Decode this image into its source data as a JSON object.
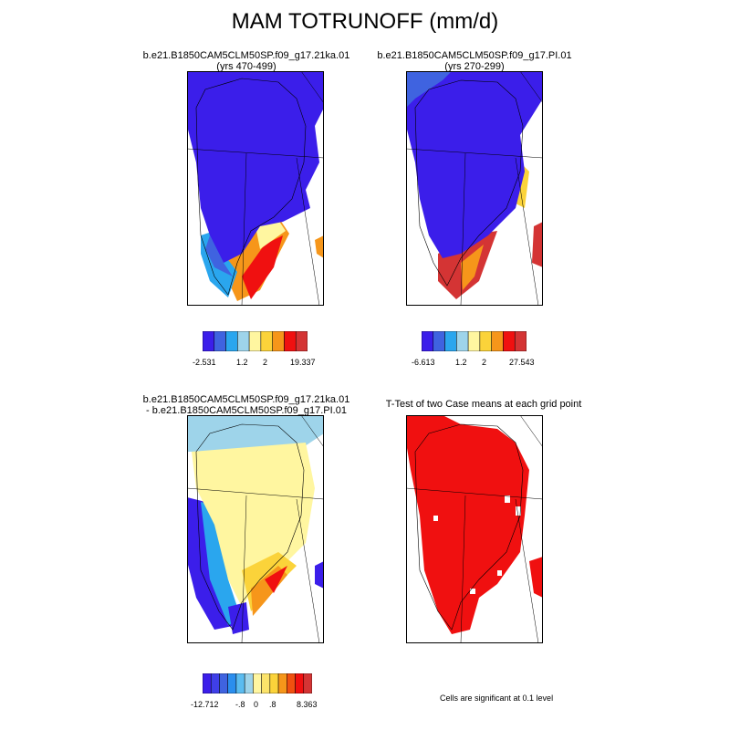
{
  "figure": {
    "title": "MAM TOTRUNOFF (mm/d)"
  },
  "panels": [
    {
      "id": "case1",
      "title_line1": "b.e21.B1850CAM5CLM50SP.f09_g17.21ka.01",
      "title_line2": "(yrs 470-499)",
      "colorbar": {
        "colors": [
          "#3b1eea",
          "#3f63e0",
          "#2aa6ee",
          "#9ed4ea",
          "#fff6a0",
          "#fbd33a",
          "#f6961a",
          "#f01010",
          "#d43434"
        ],
        "labels": [
          "-2.531",
          "1.2",
          "2",
          "19.337"
        ]
      }
    },
    {
      "id": "case2",
      "title_line1": "b.e21.B1850CAM5CLM50SP.f09_g17.PI.01",
      "title_line2": "(yrs 270-299)",
      "colorbar": {
        "colors": [
          "#3b1eea",
          "#3f63e0",
          "#2aa6ee",
          "#9ed4ea",
          "#fff6a0",
          "#fbd33a",
          "#f6961a",
          "#f01010",
          "#d43434"
        ],
        "labels": [
          "-6.613",
          "1.2",
          "2",
          "27.543"
        ]
      }
    },
    {
      "id": "difference",
      "title_line1": "b.e21.B1850CAM5CLM50SP.f09_g17.21ka.01",
      "title_line2": "- b.e21.B1850CAM5CLM50SP.f09_g17.PI.01",
      "colorbar": {
        "colors": [
          "#3b1eea",
          "#3f3fe8",
          "#3f63e0",
          "#2a8eee",
          "#5bbcf0",
          "#9ed4ea",
          "#fff6a0",
          "#fbe36a",
          "#fbd33a",
          "#f6961a",
          "#f05010",
          "#f01010",
          "#d43434"
        ],
        "labels": [
          "-12.712",
          "-.8",
          "0",
          ".8",
          "8.363"
        ]
      }
    },
    {
      "id": "ttest",
      "title_line1": "T-Test of two Case means at each grid point",
      "note": "Cells are significant at 0.1 level"
    }
  ]
}
